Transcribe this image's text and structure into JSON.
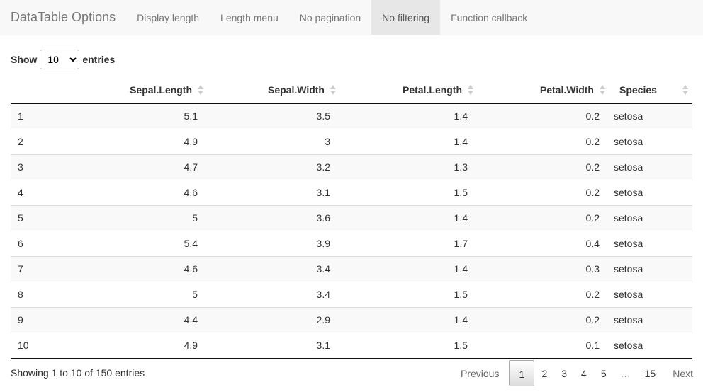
{
  "navbar": {
    "brand": "DataTable Options",
    "tabs": [
      {
        "label": "Display length"
      },
      {
        "label": "Length menu"
      },
      {
        "label": "No pagination"
      },
      {
        "label": "No filtering"
      },
      {
        "label": "Function callback"
      }
    ],
    "active_tab": "No filtering"
  },
  "length_control": {
    "prefix": "Show",
    "selected": "10",
    "suffix": "entries"
  },
  "table": {
    "columns": [
      "",
      "Sepal.Length",
      "Sepal.Width",
      "Petal.Length",
      "Petal.Width",
      "Species"
    ],
    "rows": [
      [
        "1",
        "5.1",
        "3.5",
        "1.4",
        "0.2",
        "setosa"
      ],
      [
        "2",
        "4.9",
        "3",
        "1.4",
        "0.2",
        "setosa"
      ],
      [
        "3",
        "4.7",
        "3.2",
        "1.3",
        "0.2",
        "setosa"
      ],
      [
        "4",
        "4.6",
        "3.1",
        "1.5",
        "0.2",
        "setosa"
      ],
      [
        "5",
        "5",
        "3.6",
        "1.4",
        "0.2",
        "setosa"
      ],
      [
        "6",
        "5.4",
        "3.9",
        "1.7",
        "0.4",
        "setosa"
      ],
      [
        "7",
        "4.6",
        "3.4",
        "1.4",
        "0.3",
        "setosa"
      ],
      [
        "8",
        "5",
        "3.4",
        "1.5",
        "0.2",
        "setosa"
      ],
      [
        "9",
        "4.4",
        "2.9",
        "1.4",
        "0.2",
        "setosa"
      ],
      [
        "10",
        "4.9",
        "3.1",
        "1.5",
        "0.1",
        "setosa"
      ]
    ]
  },
  "footer": {
    "info": "Showing 1 to 10 of 150 entries",
    "previous": "Previous",
    "next": "Next",
    "pages": [
      "1",
      "2",
      "3",
      "4",
      "5",
      "…",
      "15"
    ],
    "current_page": "1"
  }
}
